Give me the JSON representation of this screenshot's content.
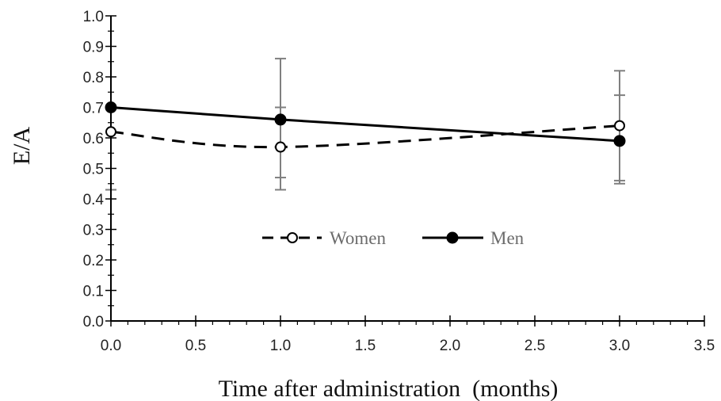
{
  "chart_data": {
    "type": "line",
    "title": "",
    "xlabel": "Time after administration  (months)",
    "ylabel": "E/A",
    "xlim": [
      0,
      3.5
    ],
    "ylim": [
      0,
      1.0
    ],
    "x_ticks": [
      "0.0",
      "0.5",
      "1.0",
      "1.5",
      "2.0",
      "2.5",
      "3.0",
      "3.5"
    ],
    "y_ticks": [
      "0.0",
      "0.1",
      "0.2",
      "0.3",
      "0.4",
      "0.5",
      "0.6",
      "0.7",
      "0.8",
      "0.9",
      "1.0"
    ],
    "grid": false,
    "legend_position": "center",
    "series": [
      {
        "name": "Women",
        "line_style": "dashed",
        "marker": "open-circle",
        "smooth": true,
        "color": "#000000",
        "x": [
          0.0,
          1.0,
          3.0
        ],
        "y": [
          0.62,
          0.57,
          0.64
        ],
        "err_upper": [
          0.7,
          0.86,
          0.82
        ],
        "err_lower": [
          0.43,
          0.47,
          0.46
        ]
      },
      {
        "name": "Men",
        "line_style": "solid",
        "marker": "filled-circle",
        "smooth": false,
        "color": "#000000",
        "x": [
          0.0,
          1.0,
          3.0
        ],
        "y": [
          0.7,
          0.66,
          0.59
        ],
        "err_upper": [
          0.7,
          0.7,
          0.74
        ],
        "err_lower": [
          0.43,
          0.43,
          0.45
        ]
      }
    ],
    "error_bar_color": "#7f7f7f"
  }
}
